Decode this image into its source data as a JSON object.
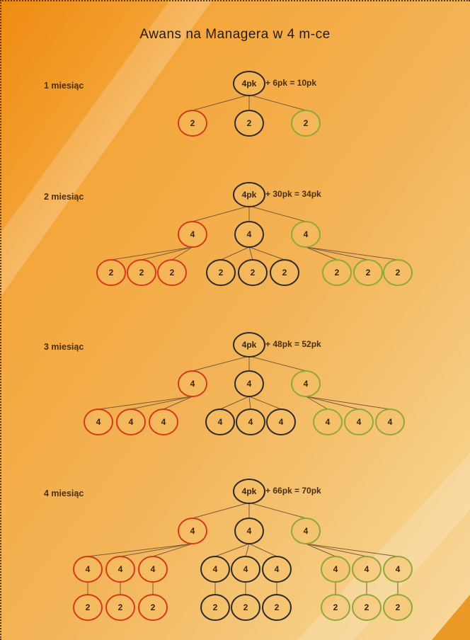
{
  "title": "Awans na Managera w 4 m-ce",
  "colors": {
    "red": "#d43a1a",
    "dark": "#2c2a2a",
    "green": "#8fa83a",
    "edge": "#7a5a3a"
  },
  "levels": [
    {
      "label": "1 miesiąc",
      "root": "4pk",
      "formula": "+ 6pk = 10pk",
      "children": [
        {
          "value": "2",
          "color": "red",
          "children": []
        },
        {
          "value": "2",
          "color": "dark",
          "children": []
        },
        {
          "value": "2",
          "color": "green",
          "children": []
        }
      ]
    },
    {
      "label": "2 miesiąc",
      "root": "4pk",
      "formula": "+ 30pk = 34pk",
      "children": [
        {
          "value": "4",
          "color": "red",
          "children": [
            {
              "value": "2",
              "child": null
            },
            {
              "value": "2",
              "child": null
            },
            {
              "value": "2",
              "child": null
            }
          ]
        },
        {
          "value": "4",
          "color": "dark",
          "children": [
            {
              "value": "2",
              "child": null
            },
            {
              "value": "2",
              "child": null
            },
            {
              "value": "2",
              "child": null
            }
          ]
        },
        {
          "value": "4",
          "color": "green",
          "children": [
            {
              "value": "2",
              "child": null
            },
            {
              "value": "2",
              "child": null
            },
            {
              "value": "2",
              "child": null
            }
          ]
        }
      ]
    },
    {
      "label": "3 miesiąc",
      "root": "4pk",
      "formula": "+ 48pk = 52pk",
      "children": [
        {
          "value": "4",
          "color": "red",
          "children": [
            {
              "value": "4",
              "child": null
            },
            {
              "value": "4",
              "child": null
            },
            {
              "value": "4",
              "child": null
            }
          ]
        },
        {
          "value": "4",
          "color": "dark",
          "children": [
            {
              "value": "4",
              "child": null
            },
            {
              "value": "4",
              "child": null
            },
            {
              "value": "4",
              "child": null
            }
          ]
        },
        {
          "value": "4",
          "color": "green",
          "children": [
            {
              "value": "4",
              "child": null
            },
            {
              "value": "4",
              "child": null
            },
            {
              "value": "4",
              "child": null
            }
          ]
        }
      ]
    },
    {
      "label": "4 miesiąc",
      "root": "4pk",
      "formula": "+ 66pk = 70pk",
      "children": [
        {
          "value": "4",
          "color": "red",
          "children": [
            {
              "value": "4",
              "child": "2"
            },
            {
              "value": "4",
              "child": "2"
            },
            {
              "value": "4",
              "child": "2"
            }
          ]
        },
        {
          "value": "4",
          "color": "dark",
          "children": [
            {
              "value": "4",
              "child": "2"
            },
            {
              "value": "4",
              "child": "2"
            },
            {
              "value": "4",
              "child": "2"
            }
          ]
        },
        {
          "value": "4",
          "color": "green",
          "children": [
            {
              "value": "4",
              "child": "2"
            },
            {
              "value": "4",
              "child": "2"
            },
            {
              "value": "4",
              "child": "2"
            }
          ]
        }
      ]
    }
  ]
}
